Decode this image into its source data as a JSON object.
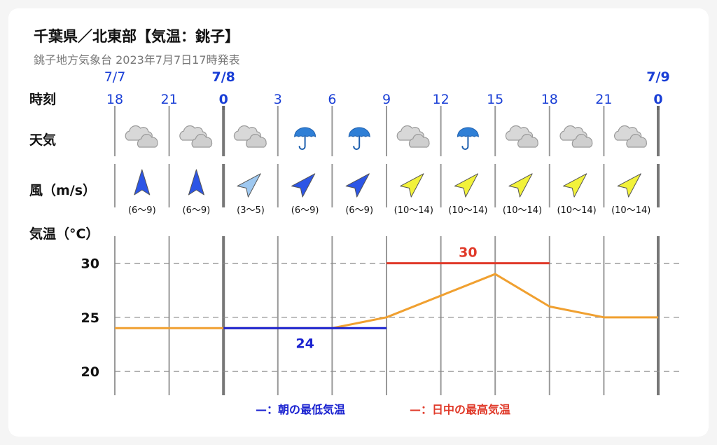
{
  "header": {
    "title": "千葉県／北東部【気温：銚子】",
    "subtitle": "銚子地方気象台 2023年7月7日17時発表"
  },
  "row_labels": {
    "time": "時刻",
    "weather": "天気",
    "wind": "風（m/s）",
    "temp": "気温（°C）"
  },
  "colors": {
    "hour_label": "#1a3fd6",
    "temp_line": "#f0a030",
    "morning_min": "#1a22d0",
    "daytime_max": "#e03a2a",
    "wind_strong": "#f2f23a",
    "wind_mid": "#2c55e6",
    "wind_light": "#9ec8f0"
  },
  "chart_data": {
    "type": "line",
    "hours": [
      "18",
      "21",
      "0",
      "3",
      "6",
      "9",
      "12",
      "15",
      "18",
      "21",
      "0"
    ],
    "date_labels": [
      {
        "hour_index": 0,
        "text": "7/7",
        "bold": false
      },
      {
        "hour_index": 2,
        "text": "7/8",
        "bold": true
      },
      {
        "hour_index": 10,
        "text": "7/9",
        "bold": true
      }
    ],
    "weather": [
      "cloudy",
      "cloudy",
      "cloudy",
      "rain",
      "rain",
      "cloudy",
      "rain",
      "cloudy",
      "cloudy",
      "cloudy"
    ],
    "wind": [
      {
        "dir": "N",
        "speed": "(6〜9)",
        "level": "mid"
      },
      {
        "dir": "N",
        "speed": "(6〜9)",
        "level": "mid"
      },
      {
        "dir": "NE",
        "speed": "(3〜5)",
        "level": "light"
      },
      {
        "dir": "NE",
        "speed": "(6〜9)",
        "level": "mid"
      },
      {
        "dir": "NE",
        "speed": "(6〜9)",
        "level": "mid"
      },
      {
        "dir": "NE",
        "speed": "(10〜14)",
        "level": "strong"
      },
      {
        "dir": "NE",
        "speed": "(10〜14)",
        "level": "strong"
      },
      {
        "dir": "NE",
        "speed": "(10〜14)",
        "level": "strong"
      },
      {
        "dir": "NE",
        "speed": "(10〜14)",
        "level": "strong"
      },
      {
        "dir": "NE",
        "speed": "(10〜14)",
        "level": "strong"
      }
    ],
    "temperature": [
      {
        "hour_index": 0,
        "value": 24
      },
      {
        "hour_index": 2,
        "value": 24
      },
      {
        "hour_index": 4,
        "value": 24
      },
      {
        "hour_index": 5,
        "value": 25
      },
      {
        "hour_index": 7,
        "value": 29
      },
      {
        "hour_index": 8,
        "value": 26
      },
      {
        "hour_index": 9,
        "value": 25
      },
      {
        "hour_index": 10,
        "value": 25
      }
    ],
    "morning_min": {
      "value": 24,
      "from_hour_index": 2,
      "to_hour_index": 5,
      "label": "24"
    },
    "daytime_max": {
      "value": 30,
      "from_hour_index": 5,
      "to_hour_index": 8,
      "label": "30"
    },
    "yticks": [
      20,
      25,
      30
    ],
    "ylim": [
      17.8,
      32.5
    ],
    "grid": true,
    "legend": [
      {
        "key": "morning_min",
        "text": "—：朝の最低気温"
      },
      {
        "key": "daytime_max",
        "text": "—：日中の最高気温"
      }
    ]
  }
}
